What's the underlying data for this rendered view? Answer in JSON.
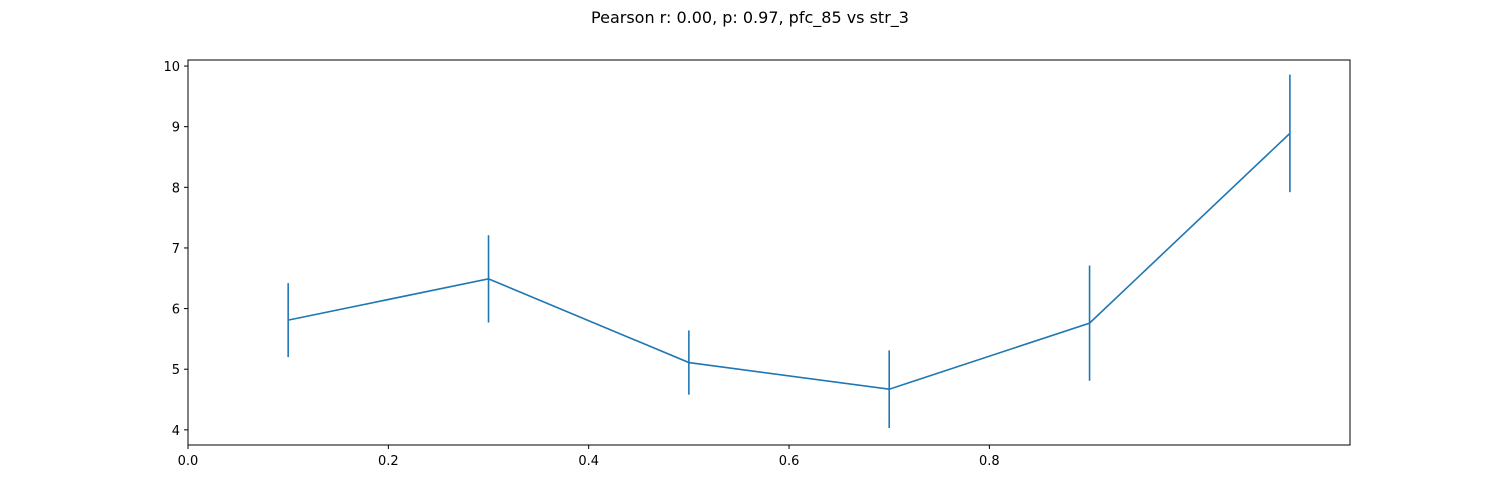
{
  "chart_data": {
    "type": "line",
    "title": "Pearson r: 0.00, p: 0.97, pfc_85 vs str_3",
    "xlabel": "",
    "ylabel": "",
    "xlim": [
      0.0,
      1.16
    ],
    "ylim": [
      3.75,
      10.1
    ],
    "grid": false,
    "line_color": "#1f77b4",
    "x_ticks": [
      {
        "value": 0.0,
        "label": "0.0"
      },
      {
        "value": 0.2,
        "label": "0.2"
      },
      {
        "value": 0.4,
        "label": "0.4"
      },
      {
        "value": 0.6,
        "label": "0.6"
      },
      {
        "value": 0.8,
        "label": "0.8"
      }
    ],
    "y_ticks": [
      {
        "value": 4,
        "label": "4"
      },
      {
        "value": 5,
        "label": "5"
      },
      {
        "value": 6,
        "label": "6"
      },
      {
        "value": 7,
        "label": "7"
      },
      {
        "value": 8,
        "label": "8"
      },
      {
        "value": 9,
        "label": "9"
      },
      {
        "value": 10,
        "label": "10"
      }
    ],
    "series": [
      {
        "x": [
          0.1,
          0.3,
          0.5,
          0.7,
          0.9,
          1.1
        ],
        "values": [
          5.81,
          6.49,
          5.11,
          4.67,
          5.76,
          8.89
        ],
        "error": [
          0.61,
          0.72,
          0.53,
          0.64,
          0.95,
          0.97
        ]
      }
    ]
  }
}
